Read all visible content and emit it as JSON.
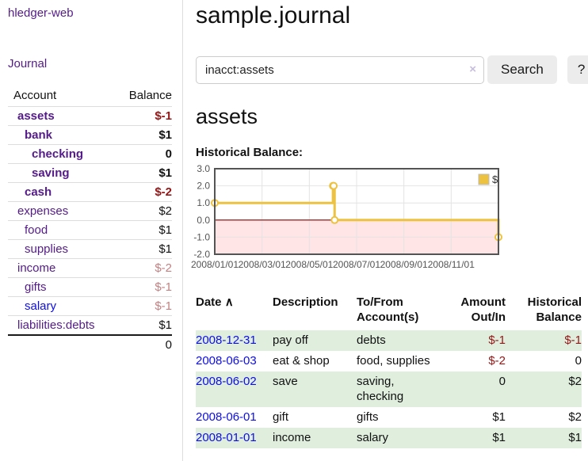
{
  "app": {
    "title": "hledger-web"
  },
  "colors": {
    "link_visited": "#551a8b",
    "link_unvisited": "#0d0deb",
    "negative": "#941717",
    "negative_pale": "#c28282",
    "row_shade": "#dfeedd",
    "chart_series": "#edc240",
    "chart_border": "#545454",
    "chart_grid": "#e4e4e4",
    "chart_zero_line": "#8b0000",
    "chart_negative_fill": "rgba(255,0,0,0.10)"
  },
  "sidebar": {
    "nav_journal": "Journal",
    "accounts_table": {
      "header": {
        "account": "Account",
        "balance": "Balance"
      },
      "rows": [
        {
          "name": "assets",
          "indent": 0,
          "bold": true,
          "balance": "$-1",
          "balance_color": "neg",
          "link_color": "purple"
        },
        {
          "name": "bank",
          "indent": 1,
          "bold": true,
          "balance": "$1",
          "balance_color": "pos",
          "link_color": "purple"
        },
        {
          "name": "checking",
          "indent": 2,
          "bold": true,
          "balance": "0",
          "balance_color": "pos",
          "link_color": "purple"
        },
        {
          "name": "saving",
          "indent": 2,
          "bold": true,
          "balance": "$1",
          "balance_color": "pos",
          "link_color": "purple"
        },
        {
          "name": "cash",
          "indent": 1,
          "bold": true,
          "balance": "$-2",
          "balance_color": "neg",
          "link_color": "purple"
        },
        {
          "name": "expenses",
          "indent": 0,
          "bold": false,
          "balance": "$2",
          "balance_color": "pos",
          "link_color": "purple"
        },
        {
          "name": "food",
          "indent": 1,
          "bold": false,
          "balance": "$1",
          "balance_color": "pos",
          "link_color": "purple"
        },
        {
          "name": "supplies",
          "indent": 1,
          "bold": false,
          "balance": "$1",
          "balance_color": "pos",
          "link_color": "purple"
        },
        {
          "name": "income",
          "indent": 0,
          "bold": false,
          "balance": "$-2",
          "balance_color": "pale-neg",
          "link_color": "purple"
        },
        {
          "name": "gifts",
          "indent": 1,
          "bold": false,
          "balance": "$-1",
          "balance_color": "pale-neg",
          "link_color": "purple"
        },
        {
          "name": "salary",
          "indent": 1,
          "bold": false,
          "balance": "$-1",
          "balance_color": "pale-neg",
          "link_color": "blue"
        },
        {
          "name": "liabilities:debts",
          "indent": 0,
          "bold": false,
          "balance": "$1",
          "balance_color": "pos",
          "link_color": "purple"
        }
      ],
      "total": "0"
    }
  },
  "header": {
    "title": "sample.journal"
  },
  "search": {
    "value": "inacct:assets",
    "clear_icon": "×",
    "button_label": "Search",
    "help_label": "?"
  },
  "account_page": {
    "heading": "assets",
    "chart_title": "Historical Balance:"
  },
  "chart_data": {
    "type": "line",
    "step": true,
    "title": "Historical Balance",
    "legend": "$",
    "legend_position": "top-right",
    "grid": true,
    "xlim": [
      0,
      12
    ],
    "ylim": [
      -2,
      3
    ],
    "yticks": [
      3.0,
      2.0,
      1.0,
      0.0,
      -1.0,
      -2.0
    ],
    "xticks": [
      {
        "x": 0,
        "label": "2008/01/01"
      },
      {
        "x": 2,
        "label": "2008/03/01"
      },
      {
        "x": 4,
        "label": "2008/05/01"
      },
      {
        "x": 6,
        "label": "2008/07/01"
      },
      {
        "x": 8,
        "label": "2008/09/01"
      },
      {
        "x": 10,
        "label": "2008/11/01"
      }
    ],
    "series": [
      {
        "name": "$",
        "points": [
          {
            "date": "2008/01/01",
            "x": 0,
            "y": 1
          },
          {
            "date": "2008/06/01",
            "x": 5.0,
            "y": 2
          },
          {
            "date": "2008/06/02",
            "x": 5.03,
            "y": 2
          },
          {
            "date": "2008/06/03",
            "x": 5.07,
            "y": 0
          },
          {
            "date": "2008/12/31",
            "x": 12.0,
            "y": -1
          }
        ]
      }
    ]
  },
  "register": {
    "sort_icon": "∧",
    "columns": [
      {
        "label": "Date"
      },
      {
        "label": "Description"
      },
      {
        "label": "To/From Account(s)"
      },
      {
        "label": "Amount Out/In"
      },
      {
        "label": "Historical Balance"
      }
    ],
    "rows": [
      {
        "date": "2008-12-31",
        "description": "pay off",
        "accounts": "debts",
        "amount": "$-1",
        "amount_neg": true,
        "balance": "$-1",
        "balance_neg": true,
        "shade": true
      },
      {
        "date": "2008-06-03",
        "description": "eat & shop",
        "accounts": "food, supplies",
        "amount": "$-2",
        "amount_neg": true,
        "balance": "0",
        "balance_neg": false,
        "shade": false
      },
      {
        "date": "2008-06-02",
        "description": "save",
        "accounts": "saving, checking",
        "amount": "0",
        "amount_neg": false,
        "balance": "$2",
        "balance_neg": false,
        "shade": true
      },
      {
        "date": "2008-06-01",
        "description": "gift",
        "accounts": "gifts",
        "amount": "$1",
        "amount_neg": false,
        "balance": "$2",
        "balance_neg": false,
        "shade": false
      },
      {
        "date": "2008-01-01",
        "description": "income",
        "accounts": "salary",
        "amount": "$1",
        "amount_neg": false,
        "balance": "$1",
        "balance_neg": false,
        "shade": true
      }
    ]
  }
}
